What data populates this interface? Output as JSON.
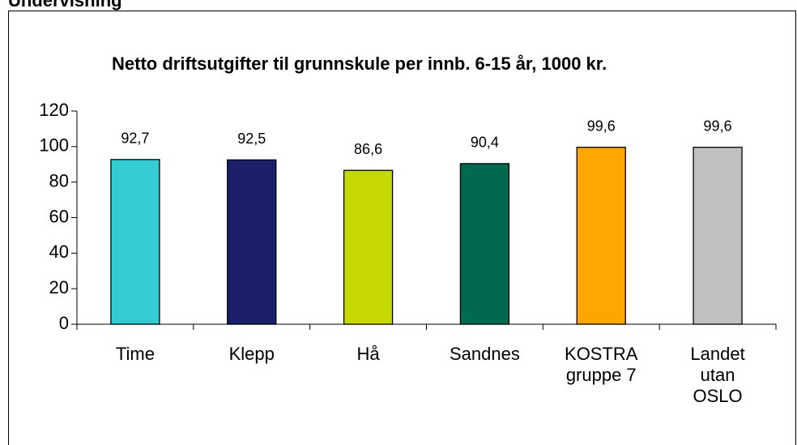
{
  "header": "Undervisning",
  "chart_data": {
    "type": "bar",
    "title": "Netto driftsutgifter til grunnskule per innb. 6-15 år, 1000 kr.",
    "categories": [
      "Time",
      "Klepp",
      "Hå",
      "Sandnes",
      "KOSTRA gruppe 7",
      "Landet utan OSLO"
    ],
    "values": [
      92.7,
      92.5,
      86.6,
      90.4,
      99.6,
      99.6
    ],
    "value_labels": [
      "92,7",
      "92,5",
      "86,6",
      "90,4",
      "99,6",
      "99,6"
    ],
    "colors": [
      "#33ccd0",
      "#1a1f6b",
      "#c5d800",
      "#006a4e",
      "#ffa500",
      "#c0c0c0"
    ],
    "ylim": [
      0,
      120
    ],
    "yticks": [
      0,
      20,
      40,
      60,
      80,
      100,
      120
    ],
    "grid": false
  }
}
